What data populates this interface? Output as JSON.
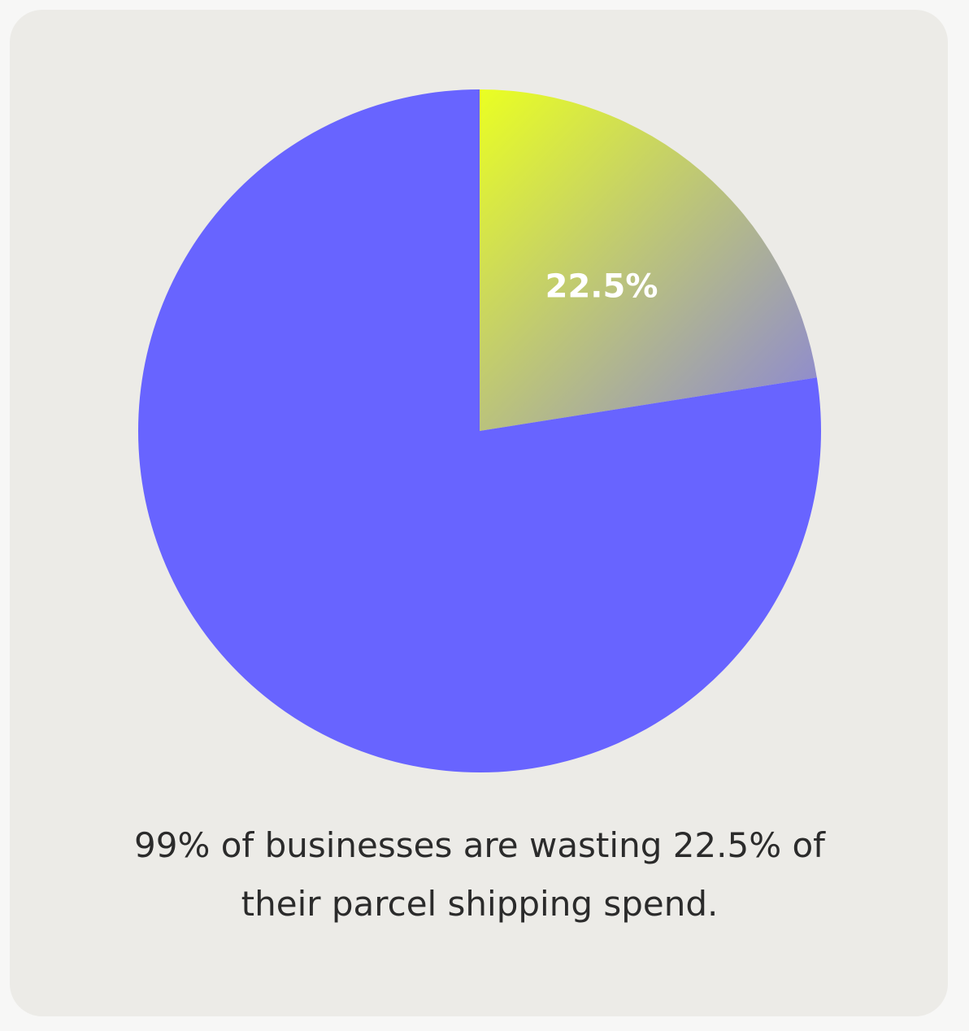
{
  "chart_data": {
    "type": "pie",
    "values": [
      22.5,
      77.5
    ],
    "value_labels": [
      "22.5%",
      null
    ],
    "colors": [
      {
        "from": "#eaff22",
        "to": "#8a85d8"
      },
      "#6864ff"
    ],
    "caption": "99% of businesses are wasting 22.5% of their parcel shipping spend."
  }
}
